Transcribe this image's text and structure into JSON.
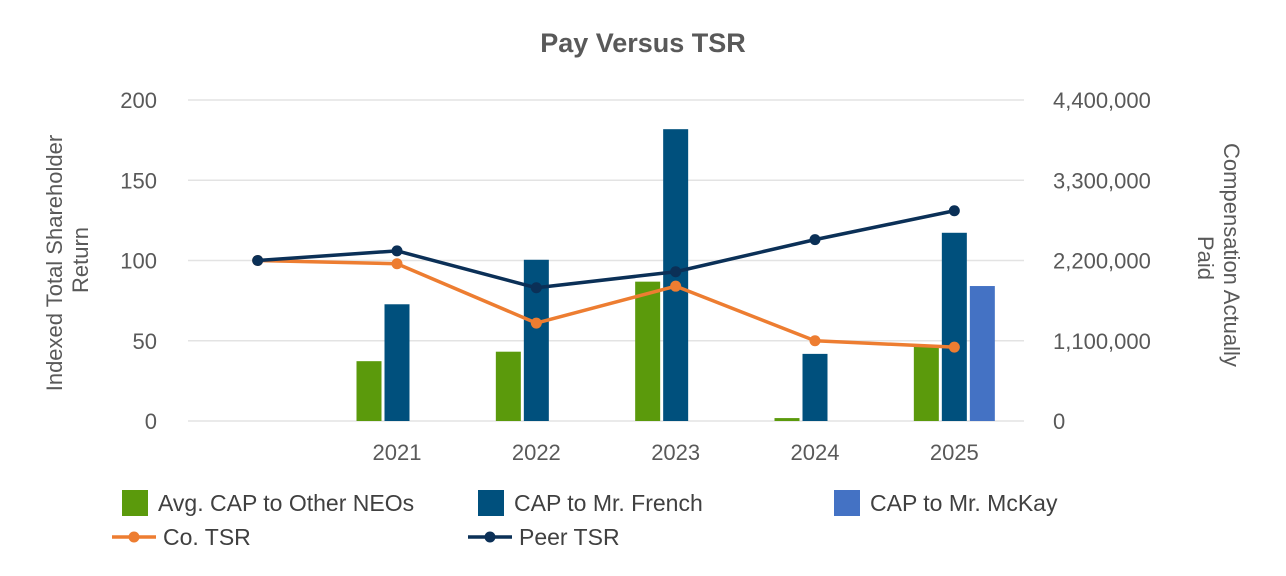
{
  "chart_data": {
    "type": "bar",
    "title": "Pay Versus TSR",
    "x": [
      "",
      "2021",
      "2022",
      "2023",
      "2024",
      "2025"
    ],
    "y_left": {
      "label_lines": [
        "Indexed Total Shareholder",
        "Return"
      ],
      "ylim": [
        0,
        200
      ],
      "ticks": [
        0,
        50,
        100,
        150,
        200
      ],
      "tick_labels": [
        "0",
        "50",
        "100",
        "150",
        "200"
      ]
    },
    "y_right": {
      "label_lines": [
        "Compensation Actually",
        "Paid"
      ],
      "ylim": [
        0,
        4400000
      ],
      "ticks": [
        0,
        1100000,
        2200000,
        3300000,
        4400000
      ],
      "tick_labels": [
        "0",
        "1,100,000",
        "2,200,000",
        "3,300,000",
        "4,400,000"
      ]
    },
    "bar_series": [
      {
        "name": "Avg. CAP to Other NEOs",
        "color": "#5B9A0C",
        "axis": "right",
        "values": [
          null,
          820000,
          950000,
          1910000,
          40000,
          1040000
        ]
      },
      {
        "name": "CAP to Mr. French",
        "color": "#00507D",
        "axis": "right",
        "values": [
          null,
          1600000,
          2210000,
          4000000,
          920000,
          2580000
        ]
      },
      {
        "name": "CAP to Mr. McKay",
        "color": "#4472C4",
        "axis": "right",
        "values": [
          null,
          null,
          null,
          null,
          null,
          1850000
        ]
      }
    ],
    "line_series": [
      {
        "name": "Co. TSR",
        "color": "#ED7D31",
        "axis": "left",
        "values": [
          100,
          98,
          61,
          84,
          50,
          46
        ]
      },
      {
        "name": "Peer TSR",
        "color": "#0B3057",
        "axis": "left",
        "values": [
          100,
          106,
          83,
          93,
          113,
          131
        ]
      }
    ],
    "legend": {
      "position": "bottom",
      "items": [
        {
          "name": "Avg. CAP to Other NEOs",
          "kind": "bar",
          "color": "#5B9A0C"
        },
        {
          "name": "CAP to Mr. French",
          "kind": "bar",
          "color": "#00507D"
        },
        {
          "name": "CAP to Mr. McKay",
          "kind": "bar",
          "color": "#4472C4"
        },
        {
          "name": "Co. TSR",
          "kind": "line",
          "color": "#ED7D31"
        },
        {
          "name": "Peer TSR",
          "kind": "line",
          "color": "#0B3057"
        }
      ]
    },
    "grid": true
  }
}
